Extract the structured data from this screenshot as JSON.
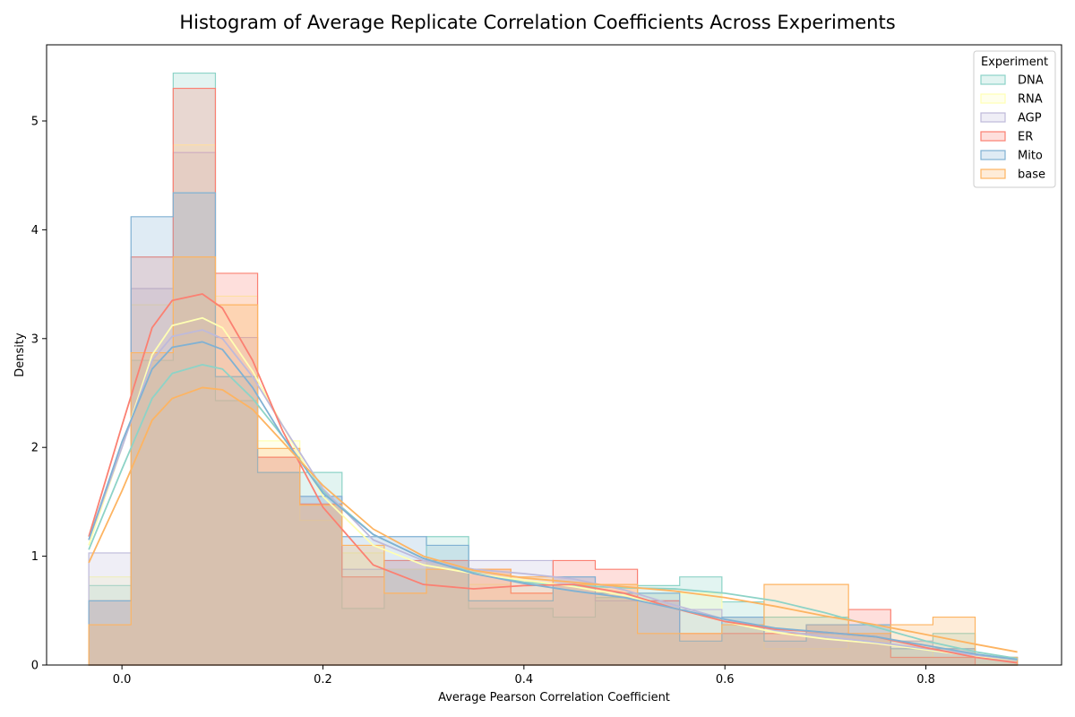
{
  "chart_data": {
    "type": "histogram",
    "title": "Histogram of Average Replicate Correlation Coefficients Across Experiments",
    "xlabel": "Average Pearson Correlation Coefficient",
    "ylabel": "Density",
    "xlim": [
      -0.075,
      0.935
    ],
    "ylim": [
      0,
      5.7
    ],
    "xticks": [
      0.0,
      0.2,
      0.4,
      0.6,
      0.8
    ],
    "yticks": [
      0,
      1,
      2,
      3,
      4,
      5
    ],
    "grid": false,
    "legend": {
      "title": "Experiment",
      "placement": "top-right"
    },
    "bin_edges": [
      -0.033,
      0.009,
      0.051,
      0.093,
      0.135,
      0.177,
      0.219,
      0.261,
      0.303,
      0.345,
      0.387,
      0.429,
      0.471,
      0.513,
      0.555,
      0.597,
      0.639,
      0.681,
      0.723,
      0.765,
      0.807,
      0.849,
      0.891
    ],
    "series": [
      {
        "name": "DNA",
        "color": "#8dd3c7",
        "densities": [
          0.73,
          2.8,
          5.44,
          2.43,
          1.77,
          1.77,
          0.52,
          0.88,
          1.18,
          0.52,
          0.52,
          0.44,
          0.62,
          0.73,
          0.81,
          0.58,
          0.44,
          0.44,
          0.37,
          0.22,
          0.29,
          0.07
        ],
        "kde_x": [
          -0.033,
          0.0,
          0.03,
          0.05,
          0.08,
          0.1,
          0.13,
          0.16,
          0.2,
          0.25,
          0.3,
          0.35,
          0.4,
          0.45,
          0.5,
          0.55,
          0.6,
          0.65,
          0.7,
          0.75,
          0.8,
          0.85,
          0.891
        ],
        "kde_y": [
          1.06,
          1.8,
          2.45,
          2.68,
          2.76,
          2.72,
          2.45,
          2.1,
          1.6,
          1.2,
          0.98,
          0.85,
          0.76,
          0.73,
          0.71,
          0.7,
          0.66,
          0.59,
          0.48,
          0.35,
          0.22,
          0.12,
          0.06
        ]
      },
      {
        "name": "RNA",
        "color": "#ffffb3",
        "densities": [
          0.81,
          3.31,
          4.78,
          3.39,
          2.06,
          1.33,
          1.03,
          0.88,
          0.96,
          0.74,
          0.66,
          0.74,
          0.74,
          0.66,
          0.66,
          0.44,
          0.15,
          0.15,
          0.22,
          0.15,
          0.07,
          0.07
        ],
        "kde_x": [
          -0.033,
          0.0,
          0.03,
          0.05,
          0.08,
          0.1,
          0.13,
          0.16,
          0.2,
          0.25,
          0.3,
          0.35,
          0.4,
          0.45,
          0.5,
          0.55,
          0.6,
          0.65,
          0.7,
          0.75,
          0.8,
          0.85,
          0.891
        ],
        "kde_y": [
          1.1,
          2.0,
          2.85,
          3.12,
          3.19,
          3.1,
          2.7,
          2.2,
          1.55,
          1.1,
          0.92,
          0.84,
          0.78,
          0.72,
          0.64,
          0.52,
          0.4,
          0.3,
          0.24,
          0.2,
          0.14,
          0.08,
          0.05
        ]
      },
      {
        "name": "AGP",
        "color": "#bebada",
        "densities": [
          1.03,
          3.46,
          4.71,
          3.01,
          1.91,
          1.55,
          0.88,
          0.96,
          0.96,
          0.96,
          0.96,
          0.81,
          0.59,
          0.59,
          0.51,
          0.44,
          0.29,
          0.29,
          0.29,
          0.22,
          0.15,
          0.07
        ],
        "kde_x": [
          -0.033,
          0.0,
          0.03,
          0.05,
          0.08,
          0.1,
          0.13,
          0.16,
          0.2,
          0.25,
          0.3,
          0.35,
          0.4,
          0.45,
          0.5,
          0.55,
          0.6,
          0.65,
          0.7,
          0.75,
          0.8,
          0.85,
          0.891
        ],
        "kde_y": [
          1.15,
          2.0,
          2.8,
          3.02,
          3.08,
          3.0,
          2.65,
          2.2,
          1.62,
          1.15,
          0.96,
          0.88,
          0.84,
          0.79,
          0.69,
          0.55,
          0.42,
          0.32,
          0.26,
          0.21,
          0.15,
          0.09,
          0.05
        ]
      },
      {
        "name": "ER",
        "color": "#fb8072",
        "densities": [
          0.59,
          3.75,
          5.3,
          3.6,
          1.91,
          1.48,
          0.81,
          0.96,
          0.96,
          0.88,
          0.66,
          0.96,
          0.88,
          0.59,
          0.29,
          0.29,
          0.29,
          0.37,
          0.51,
          0.07,
          0.07,
          0.0
        ],
        "kde_x": [
          -0.033,
          0.0,
          0.03,
          0.05,
          0.08,
          0.1,
          0.13,
          0.16,
          0.2,
          0.25,
          0.3,
          0.35,
          0.4,
          0.45,
          0.5,
          0.55,
          0.6,
          0.65,
          0.7,
          0.75,
          0.8,
          0.85,
          0.891
        ],
        "kde_y": [
          1.18,
          2.2,
          3.1,
          3.35,
          3.41,
          3.28,
          2.8,
          2.15,
          1.45,
          0.92,
          0.74,
          0.7,
          0.73,
          0.74,
          0.66,
          0.52,
          0.4,
          0.33,
          0.3,
          0.26,
          0.16,
          0.07,
          0.02
        ]
      },
      {
        "name": "Mito",
        "color": "#80b1d3",
        "densities": [
          0.59,
          4.12,
          4.34,
          2.65,
          1.77,
          1.55,
          1.18,
          1.18,
          1.1,
          0.59,
          0.59,
          0.81,
          0.66,
          0.66,
          0.22,
          0.44,
          0.22,
          0.37,
          0.37,
          0.15,
          0.15,
          0.07
        ],
        "kde_x": [
          -0.033,
          0.0,
          0.03,
          0.05,
          0.08,
          0.1,
          0.13,
          0.16,
          0.2,
          0.25,
          0.3,
          0.35,
          0.4,
          0.45,
          0.5,
          0.55,
          0.6,
          0.65,
          0.7,
          0.75,
          0.8,
          0.85,
          0.891
        ],
        "kde_y": [
          1.15,
          2.05,
          2.72,
          2.92,
          2.97,
          2.9,
          2.55,
          2.1,
          1.58,
          1.2,
          0.98,
          0.84,
          0.75,
          0.68,
          0.62,
          0.52,
          0.42,
          0.34,
          0.3,
          0.26,
          0.18,
          0.1,
          0.05
        ]
      },
      {
        "name": "base",
        "color": "#fdb462",
        "densities": [
          0.37,
          2.87,
          3.75,
          3.31,
          1.99,
          1.47,
          1.1,
          0.66,
          0.88,
          0.88,
          0.81,
          0.74,
          0.74,
          0.29,
          0.29,
          0.37,
          0.74,
          0.74,
          0.29,
          0.37,
          0.44,
          0.07
        ],
        "kde_x": [
          -0.033,
          0.0,
          0.03,
          0.05,
          0.08,
          0.1,
          0.13,
          0.16,
          0.2,
          0.25,
          0.3,
          0.35,
          0.4,
          0.45,
          0.5,
          0.55,
          0.6,
          0.65,
          0.7,
          0.75,
          0.8,
          0.85,
          0.891
        ],
        "kde_y": [
          0.94,
          1.6,
          2.25,
          2.45,
          2.55,
          2.53,
          2.35,
          2.05,
          1.65,
          1.25,
          1.0,
          0.87,
          0.8,
          0.76,
          0.72,
          0.68,
          0.62,
          0.54,
          0.45,
          0.37,
          0.28,
          0.19,
          0.12
        ]
      }
    ]
  }
}
